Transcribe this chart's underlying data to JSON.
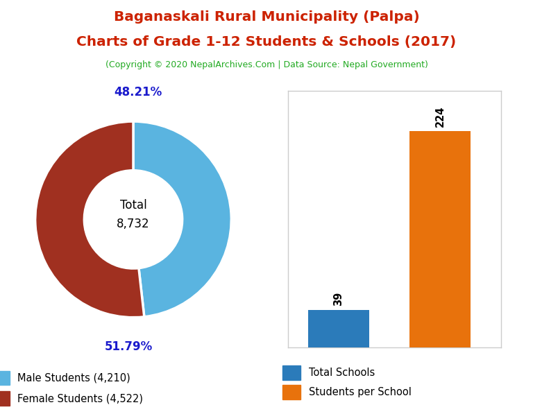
{
  "title_line1": "Baganaskali Rural Municipality (Palpa)",
  "title_line2": "Charts of Grade 1-12 Students & Schools (2017)",
  "subtitle": "(Copyright © 2020 NepalArchives.Com | Data Source: Nepal Government)",
  "title_color": "#cc2200",
  "subtitle_color": "#22aa22",
  "donut_values": [
    4210,
    4522
  ],
  "donut_colors": [
    "#5ab4e0",
    "#a03020"
  ],
  "donut_labels": [
    "48.21%",
    "51.79%"
  ],
  "donut_center_text": "Total\n8,732",
  "donut_legend_labels": [
    "Male Students (4,210)",
    "Female Students (4,522)"
  ],
  "pct_color": "#1a1acc",
  "bar_values": [
    39,
    224
  ],
  "bar_colors": [
    "#2b7bba",
    "#e8720c"
  ],
  "bar_labels": [
    "Total Schools",
    "Students per School"
  ],
  "bar_annotations": [
    "39",
    "224"
  ],
  "bg_color": "#ffffff"
}
